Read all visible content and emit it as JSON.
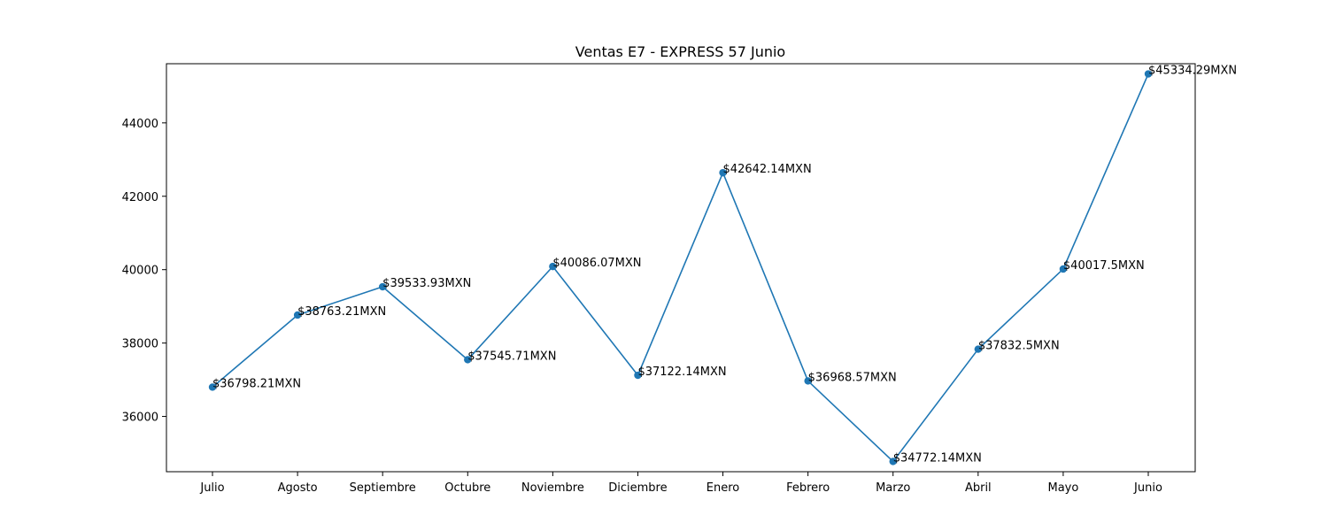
{
  "chart_data": {
    "type": "line",
    "title": "Ventas E7 - EXPRESS 57 Junio",
    "xlabel": "",
    "ylabel": "",
    "categories": [
      "Julio",
      "Agosto",
      "Septiembre",
      "Octubre",
      "Noviembre",
      "Diciembre",
      "Enero",
      "Febrero",
      "Marzo",
      "Abril",
      "Mayo",
      "Junio"
    ],
    "series": [
      {
        "values": [
          36798.21,
          38763.21,
          39533.93,
          37545.71,
          40086.07,
          37122.14,
          42642.14,
          36968.57,
          34772.14,
          37832.5,
          40017.5,
          45334.29
        ],
        "labels": [
          "$36798.21MXN",
          "$38763.21MXN",
          "$39533.93MXN",
          "$37545.71MXN",
          "$40086.07MXN",
          "$37122.14MXN",
          "$42642.14MXN",
          "$36968.57MXN",
          "$34772.14MXN",
          "$37832.5MXN",
          "$40017.5MXN",
          "$45334.29MXN"
        ],
        "color": "#1f77b4"
      }
    ],
    "yticks": [
      36000,
      38000,
      40000,
      42000,
      44000
    ],
    "ylim": [
      34494,
      45612
    ],
    "grid": false,
    "legend": "none"
  }
}
